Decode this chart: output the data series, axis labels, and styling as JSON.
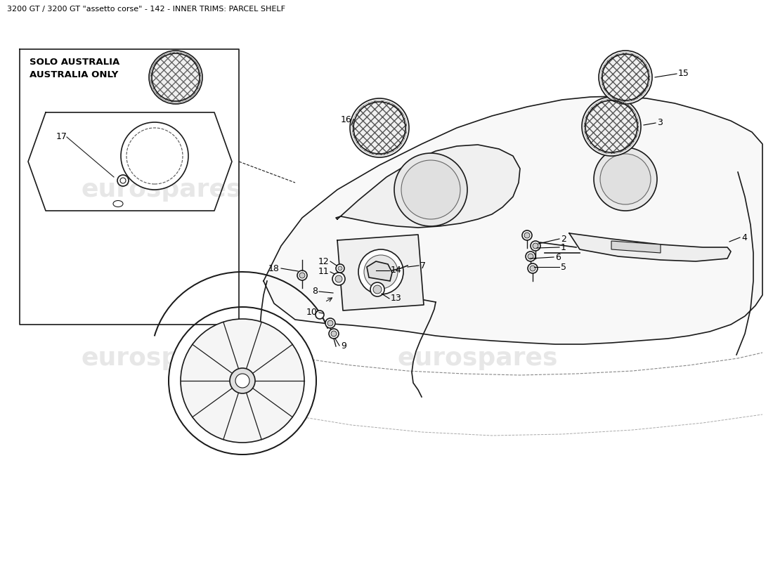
{
  "title": "3200 GT / 3200 GT \"assetto corse\" - 142 - INNER TRIMS: PARCEL SHELF",
  "title_fontsize": 8,
  "background_color": "#ffffff",
  "watermark_text": "eurospares",
  "watermark_color": "#d8d8d8",
  "australia_label_1": "SOLO AUSTRALIA",
  "australia_label_2": "AUSTRALIA ONLY",
  "line_color": "#1a1a1a",
  "lw": 1.2
}
